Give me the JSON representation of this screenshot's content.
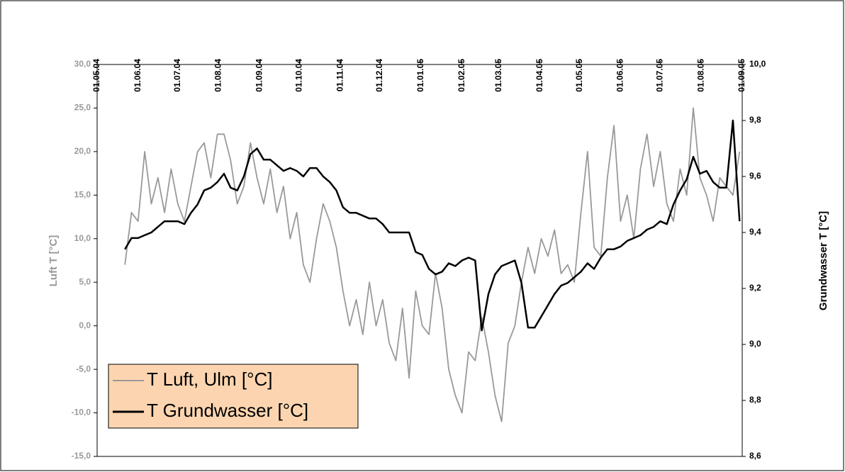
{
  "chart_data": {
    "type": "line",
    "y_label": "Luft T [°C]",
    "y2_label": "Grundwasser T [°C]",
    "legend": "lower left",
    "legend_color": "#fcd5b0",
    "x": [
      "2004-05-22",
      "2004-05-27",
      "2004-06-01",
      "2004-06-06",
      "2004-06-11",
      "2004-06-16",
      "2004-06-21",
      "2004-06-26",
      "2004-07-01",
      "2004-07-06",
      "2004-07-11",
      "2004-07-16",
      "2004-07-21",
      "2004-07-26",
      "2004-07-31",
      "2004-08-05",
      "2004-08-10",
      "2004-08-15",
      "2004-08-20",
      "2004-08-25",
      "2004-08-30",
      "2004-09-04",
      "2004-09-09",
      "2004-09-14",
      "2004-09-19",
      "2004-09-24",
      "2004-09-29",
      "2004-10-04",
      "2004-10-09",
      "2004-10-14",
      "2004-10-19",
      "2004-10-24",
      "2004-10-29",
      "2004-11-03",
      "2004-11-08",
      "2004-11-13",
      "2004-11-18",
      "2004-11-23",
      "2004-11-28",
      "2004-12-03",
      "2004-12-08",
      "2004-12-13",
      "2004-12-18",
      "2004-12-23",
      "2004-12-28",
      "2005-01-02",
      "2005-01-07",
      "2005-01-12",
      "2005-01-17",
      "2005-01-22",
      "2005-01-27",
      "2005-02-01",
      "2005-02-06",
      "2005-02-11",
      "2005-02-16",
      "2005-02-21",
      "2005-02-26",
      "2005-03-03",
      "2005-03-08",
      "2005-03-13",
      "2005-03-18",
      "2005-03-23",
      "2005-03-28",
      "2005-04-02",
      "2005-04-07",
      "2005-04-12",
      "2005-04-17",
      "2005-04-22",
      "2005-04-27",
      "2005-05-02",
      "2005-05-07",
      "2005-05-12",
      "2005-05-17",
      "2005-05-22",
      "2005-05-27",
      "2005-06-01",
      "2005-06-06",
      "2005-06-11",
      "2005-06-16",
      "2005-06-21",
      "2005-06-26",
      "2005-07-01",
      "2005-07-06",
      "2005-07-11",
      "2005-07-16",
      "2005-07-21",
      "2005-07-26",
      "2005-07-31",
      "2005-08-05",
      "2005-08-10",
      "2005-08-15",
      "2005-08-20",
      "2005-08-25",
      "2005-08-30"
    ],
    "series": [
      {
        "name": "T Luft, Ulm [°C]",
        "color": "#999999",
        "axis": "y",
        "values": [
          7,
          13,
          12,
          20,
          14,
          17,
          13,
          18,
          14,
          12,
          16,
          20,
          21,
          17,
          22,
          22,
          19,
          14,
          16,
          21,
          17,
          14,
          18,
          13,
          16,
          10,
          13,
          7,
          5,
          10,
          14,
          12,
          9,
          4,
          0,
          3,
          -1,
          5,
          0,
          3,
          -2,
          -4,
          2,
          -6,
          4,
          0,
          -1,
          6,
          2,
          -5,
          -8,
          -10,
          -3,
          -4,
          1,
          -3,
          -8,
          -11,
          -2,
          0,
          5,
          9,
          6,
          10,
          8,
          11,
          6,
          7,
          5,
          13,
          20,
          9,
          8,
          17,
          23,
          12,
          15,
          10,
          18,
          22,
          16,
          20,
          14,
          12,
          18,
          15,
          25,
          17,
          15,
          12,
          17,
          16,
          15,
          20
        ]
      },
      {
        "name": "T Grundwasser [°C]",
        "color": "#000000",
        "axis": "y2",
        "values": [
          9.34,
          9.38,
          9.38,
          9.39,
          9.4,
          9.42,
          9.44,
          9.44,
          9.44,
          9.43,
          9.47,
          9.5,
          9.55,
          9.56,
          9.58,
          9.61,
          9.56,
          9.55,
          9.6,
          9.68,
          9.7,
          9.66,
          9.66,
          9.64,
          9.62,
          9.63,
          9.62,
          9.6,
          9.63,
          9.63,
          9.6,
          9.58,
          9.55,
          9.49,
          9.47,
          9.47,
          9.46,
          9.45,
          9.45,
          9.43,
          9.4,
          9.4,
          9.4,
          9.4,
          9.33,
          9.32,
          9.27,
          9.25,
          9.26,
          9.29,
          9.28,
          9.3,
          9.31,
          9.3,
          9.05,
          9.18,
          9.25,
          9.28,
          9.29,
          9.3,
          9.22,
          9.06,
          9.06,
          9.1,
          9.14,
          9.18,
          9.21,
          9.22,
          9.24,
          9.26,
          9.29,
          9.27,
          9.31,
          9.34,
          9.34,
          9.35,
          9.37,
          9.38,
          9.39,
          9.41,
          9.42,
          9.44,
          9.43,
          9.5,
          9.55,
          9.59,
          9.67,
          9.61,
          9.62,
          9.58,
          9.56,
          9.56,
          9.8,
          9.44
        ]
      }
    ],
    "xlim": [
      "2004-05-01",
      "2005-09-01"
    ],
    "xticks": [
      {
        "value": "2004-05-01",
        "label": "01.05.04"
      },
      {
        "value": "2004-06-01",
        "label": "01.06.04"
      },
      {
        "value": "2004-07-01",
        "label": "01.07.04"
      },
      {
        "value": "2004-08-01",
        "label": "01.08.04"
      },
      {
        "value": "2004-09-01",
        "label": "01.09.04"
      },
      {
        "value": "2004-10-01",
        "label": "01.10.04"
      },
      {
        "value": "2004-11-01",
        "label": "01.11.04"
      },
      {
        "value": "2004-12-01",
        "label": "01.12.04"
      },
      {
        "value": "2005-01-01",
        "label": "01.01.05"
      },
      {
        "value": "2005-02-01",
        "label": "01.02.05"
      },
      {
        "value": "2005-03-01",
        "label": "01.03.05"
      },
      {
        "value": "2005-04-01",
        "label": "01.04.05"
      },
      {
        "value": "2005-05-01",
        "label": "01.05.05"
      },
      {
        "value": "2005-06-01",
        "label": "01.06.05"
      },
      {
        "value": "2005-07-01",
        "label": "01.07.05"
      },
      {
        "value": "2005-08-01",
        "label": "01.08.05"
      },
      {
        "value": "2005-09-01",
        "label": "01.09.05"
      }
    ],
    "ylim": [
      -15,
      30
    ],
    "yticks": [
      {
        "value": -15,
        "label": "-15,0"
      },
      {
        "value": -10,
        "label": "-10,0"
      },
      {
        "value": -5,
        "label": "-5,0"
      },
      {
        "value": 0,
        "label": "0,0"
      },
      {
        "value": 5,
        "label": "5,0"
      },
      {
        "value": 10,
        "label": "10,0"
      },
      {
        "value": 15,
        "label": "15,0"
      },
      {
        "value": 20,
        "label": "20,0"
      },
      {
        "value": 25,
        "label": "25,0"
      },
      {
        "value": 30,
        "label": "30,0"
      }
    ],
    "y2lim": [
      8.6,
      10.0
    ],
    "y2ticks": [
      {
        "value": 8.6,
        "label": "8,6"
      },
      {
        "value": 8.8,
        "label": "8,8"
      },
      {
        "value": 9.0,
        "label": "9,0"
      },
      {
        "value": 9.2,
        "label": "9,2"
      },
      {
        "value": 9.4,
        "label": "9,4"
      },
      {
        "value": 9.6,
        "label": "9,6"
      },
      {
        "value": 9.8,
        "label": "9,8"
      },
      {
        "value": 10.0,
        "label": "10,0"
      }
    ]
  }
}
